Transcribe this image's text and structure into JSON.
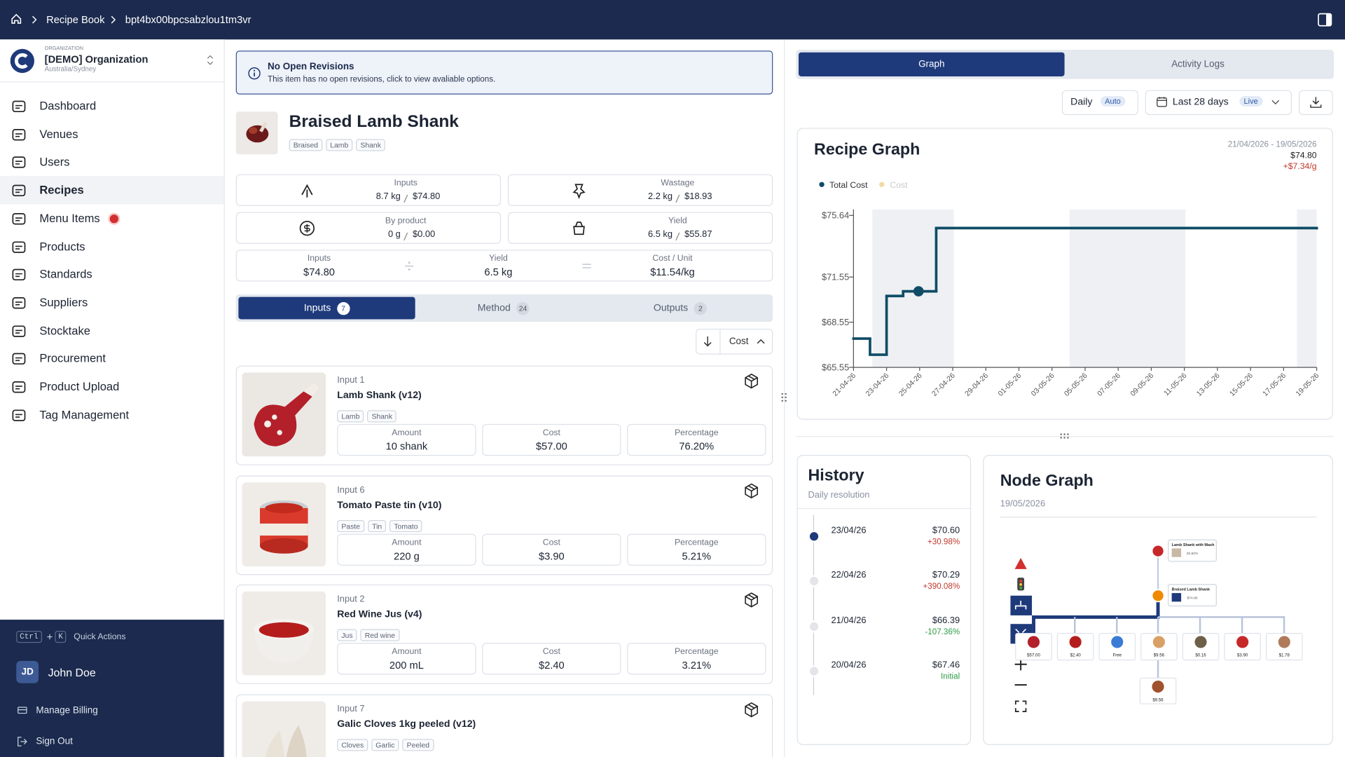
{
  "breadcrumb": [
    "Recipe Book",
    "bpt4bx00bpcsabzlou1tm3vr"
  ],
  "organization": {
    "caption": "ORGANIZATION",
    "name": "[DEMO] Organization",
    "timezone": "Australia/Sydney"
  },
  "nav": [
    "Dashboard",
    "Venues",
    "Users",
    "Recipes",
    "Menu Items",
    "Products",
    "Standards",
    "Suppliers",
    "Stocktake",
    "Procurement",
    "Product Upload",
    "Tag Management"
  ],
  "active_nav": "Recipes",
  "alert_nav": "Menu Items",
  "quick_actions": {
    "keys": [
      "Ctrl",
      "K"
    ],
    "label": "Quick Actions"
  },
  "user": {
    "initials": "JD",
    "name": "John Doe"
  },
  "footer_links": [
    "Manage Billing",
    "Sign Out"
  ],
  "banner": {
    "title": "No Open Revisions",
    "text": "This item has no open revisions, click to view avaliable options."
  },
  "recipe": {
    "name": "Braised Lamb Shank",
    "tags": [
      "Braised",
      "Lamb",
      "Shank"
    ]
  },
  "stats": [
    {
      "label": "Inputs",
      "qty": "8.7 kg",
      "cost": "$74.80"
    },
    {
      "label": "Wastage",
      "qty": "2.2 kg",
      "cost": "$18.93"
    },
    {
      "label": "By product",
      "qty": "0 g",
      "cost": "$0.00"
    },
    {
      "label": "Yield",
      "qty": "6.5 kg",
      "cost": "$55.87"
    }
  ],
  "calc": [
    {
      "label": "Inputs",
      "value": "$74.80"
    },
    {
      "label": "Yield",
      "value": "6.5 kg"
    },
    {
      "label": "Cost / Unit",
      "value": "$11.54/kg"
    }
  ],
  "tabs": [
    {
      "label": "Inputs",
      "count": 7
    },
    {
      "label": "Method",
      "count": 24
    },
    {
      "label": "Outputs",
      "count": 2
    }
  ],
  "sort": "Cost",
  "field_labels": [
    "Amount",
    "Cost",
    "Percentage"
  ],
  "inputs": [
    {
      "index": "Input 1",
      "name": "Lamb Shank (v12)",
      "tags": [
        "Lamb",
        "Shank"
      ],
      "fields": [
        "10 shank",
        "$57.00",
        "76.20%"
      ]
    },
    {
      "index": "Input 6",
      "name": "Tomato Paste tin (v10)",
      "tags": [
        "Paste",
        "Tin",
        "Tomato"
      ],
      "fields": [
        "220 g",
        "$3.90",
        "5.21%"
      ]
    },
    {
      "index": "Input 2",
      "name": "Red Wine Jus (v4)",
      "tags": [
        "Jus",
        "Red wine"
      ],
      "fields": [
        "200 mL",
        "$2.40",
        "3.21%"
      ]
    },
    {
      "index": "Input 7",
      "name": "Galic Cloves 1kg peeled (v12)",
      "tags": [
        "Cloves",
        "Garlic",
        "Peeled"
      ]
    }
  ],
  "right_tabs": [
    "Graph",
    "Activity Logs"
  ],
  "period": {
    "resolution": "Daily",
    "resolution_badge": "Auto",
    "range": "Last 28 days",
    "range_badge": "Live"
  },
  "recipe_graph": {
    "title": "Recipe Graph",
    "date_range": "21/04/2026 - 19/05/2026",
    "current": "$74.80",
    "change": "+$7.34/g",
    "legend": [
      {
        "name": "Total Cost",
        "color": "#0f4c66"
      },
      {
        "name": "Cost",
        "color": "#f3d9a4"
      }
    ],
    "x": [
      "21-04-26",
      "22-04-26",
      "23-04-26",
      "24-04-26",
      "26-04-26",
      "19-05-26"
    ],
    "values": [
      67.46,
      66.39,
      70.29,
      70.6,
      74.8,
      74.8
    ],
    "xlim": [
      "21-04-26",
      "19-05-26"
    ],
    "xticks": [
      "21-04-26",
      "23-04-26",
      "25-04-26",
      "27-04-26",
      "29-04-26",
      "01-05-26",
      "03-05-26",
      "05-05-26",
      "07-05-26",
      "09-05-26",
      "11-05-26",
      "13-05-26",
      "15-05-26",
      "17-05-26",
      "19-05-26"
    ],
    "ylim": [
      65.55,
      75.64
    ],
    "yticks": [
      {
        "value": 75.64,
        "label": "$75.64"
      },
      {
        "value": 71.55,
        "label": "$71.55"
      },
      {
        "value": 68.55,
        "label": "$68.55"
      },
      {
        "value": 65.55,
        "label": "$65.55"
      }
    ]
  },
  "history": {
    "title": "History",
    "subtitle": "Daily resolution",
    "entries": [
      {
        "date": "23/04/26",
        "value": "$70.60",
        "change": "+30.98%"
      },
      {
        "date": "22/04/26",
        "value": "$70.29",
        "change": "+390.08%"
      },
      {
        "date": "21/04/26",
        "value": "$66.39",
        "change": "-107.36%"
      },
      {
        "date": "20/04/26",
        "value": "$67.46",
        "change": "Initial"
      }
    ]
  },
  "node_graph": {
    "title": "Node Graph",
    "date": "19/05/2026",
    "top_node": {
      "name": "Lamb Shank with Mash",
      "value": "20.82%"
    },
    "recipe_node": {
      "name": "Braised Lamb Shank",
      "value": "$74.80"
    },
    "leaf_values": [
      "$57.00",
      "$2.40",
      "Free",
      "$9.56",
      "$0.16",
      "$3.90",
      "$1.78"
    ],
    "sub_leaf": "$9.56"
  }
}
